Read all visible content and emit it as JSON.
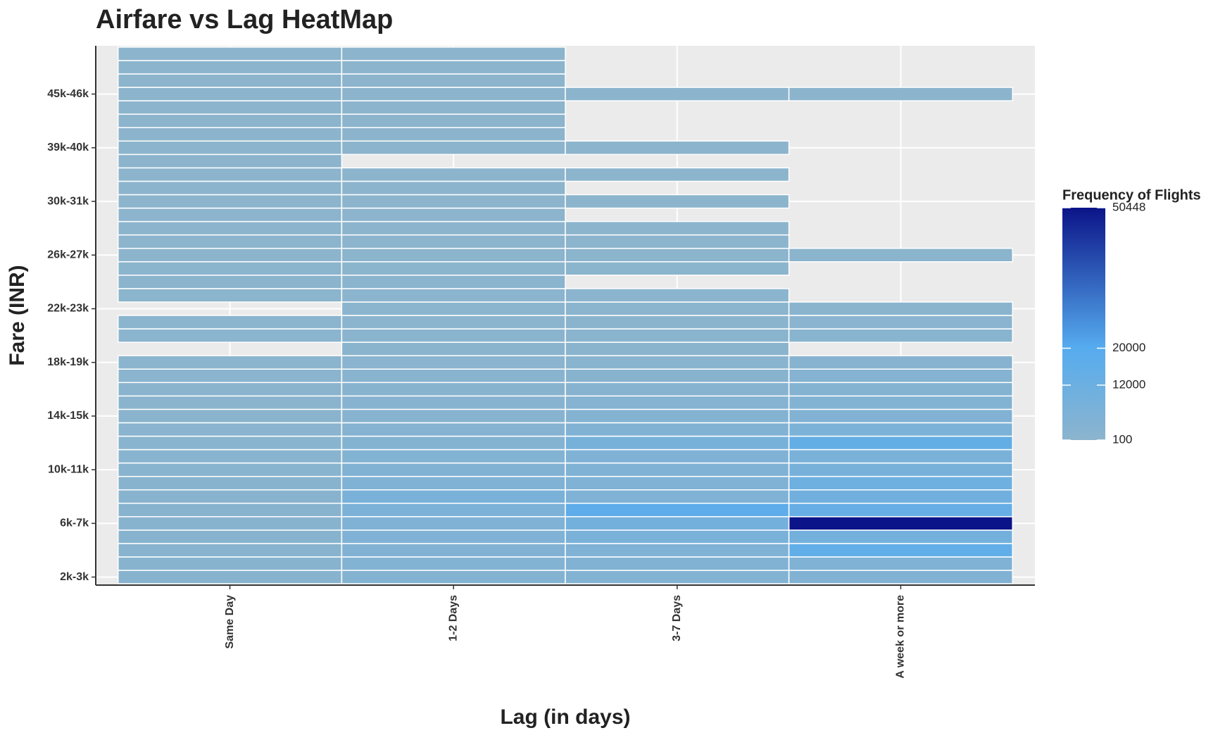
{
  "chart_data": {
    "type": "heatmap",
    "title": "Airfare vs Lag HeatMap",
    "x_label": "Lag (in days)",
    "y_label": "Fare (INR)",
    "x": [
      "Same Day",
      "1-2 Days",
      "3-7 Days",
      "A week or more"
    ],
    "y": [
      "2k-3k",
      null,
      null,
      null,
      "6k-7k",
      null,
      null,
      null,
      "10k-11k",
      null,
      null,
      null,
      "14k-15k",
      null,
      null,
      null,
      "18k-19k",
      null,
      null,
      null,
      "22k-23k",
      null,
      null,
      null,
      "26k-27k",
      null,
      null,
      null,
      "30k-31k",
      null,
      null,
      null,
      "39k-40k",
      null,
      null,
      null,
      "45k-46k",
      null,
      null,
      null
    ],
    "values": [
      [
        1500,
        3000,
        3500,
        4000
      ],
      [
        1500,
        3500,
        4000,
        5000
      ],
      [
        1500,
        4000,
        5000,
        16000
      ],
      [
        1500,
        4500,
        7000,
        9000
      ],
      [
        1500,
        5000,
        9000,
        50448
      ],
      [
        1500,
        6000,
        17000,
        14000
      ],
      [
        1500,
        7000,
        5000,
        10000
      ],
      [
        1500,
        5000,
        5000,
        11000
      ],
      [
        1200,
        4000,
        4500,
        8000
      ],
      [
        1200,
        3500,
        5000,
        7000
      ],
      [
        1200,
        3000,
        8000,
        15000
      ],
      [
        1000,
        2500,
        4000,
        6000
      ],
      [
        900,
        2000,
        3000,
        4000
      ],
      [
        800,
        1800,
        2500,
        3500
      ],
      [
        700,
        1500,
        2000,
        3000
      ],
      [
        600,
        1200,
        1500,
        2500
      ],
      [
        500,
        1000,
        1200,
        2000
      ],
      [
        null,
        800,
        900,
        null
      ],
      [
        400,
        700,
        800,
        1200
      ],
      [
        400,
        600,
        700,
        1000
      ],
      [
        null,
        500,
        600,
        800
      ],
      [
        300,
        400,
        400,
        null
      ],
      [
        300,
        400,
        null,
        null
      ],
      [
        300,
        300,
        300,
        null
      ],
      [
        250,
        300,
        300,
        300
      ],
      [
        250,
        250,
        250,
        null
      ],
      [
        200,
        250,
        200,
        null
      ],
      [
        200,
        200,
        null,
        null
      ],
      [
        200,
        200,
        150,
        null
      ],
      [
        200,
        150,
        null,
        null
      ],
      [
        150,
        150,
        150,
        null
      ],
      [
        150,
        null,
        null,
        null
      ],
      [
        150,
        150,
        120,
        null
      ],
      [
        150,
        120,
        null,
        null
      ],
      [
        150,
        120,
        null,
        null
      ],
      [
        150,
        120,
        null,
        null
      ],
      [
        120,
        120,
        100,
        100
      ],
      [
        120,
        100,
        null,
        null
      ],
      [
        120,
        100,
        null,
        null
      ],
      [
        120,
        100,
        null,
        null
      ]
    ],
    "colorbar": {
      "title": "Frequency of Flights",
      "lim": [
        100,
        50448
      ],
      "ticks": [
        100,
        12000,
        20000,
        50448
      ],
      "stops": [
        {
          "value": 100,
          "color": "#8cb4cd"
        },
        {
          "value": 20000,
          "color": "#56acef"
        },
        {
          "value": 50448,
          "color": "#0b1488"
        }
      ]
    },
    "grid": true
  }
}
